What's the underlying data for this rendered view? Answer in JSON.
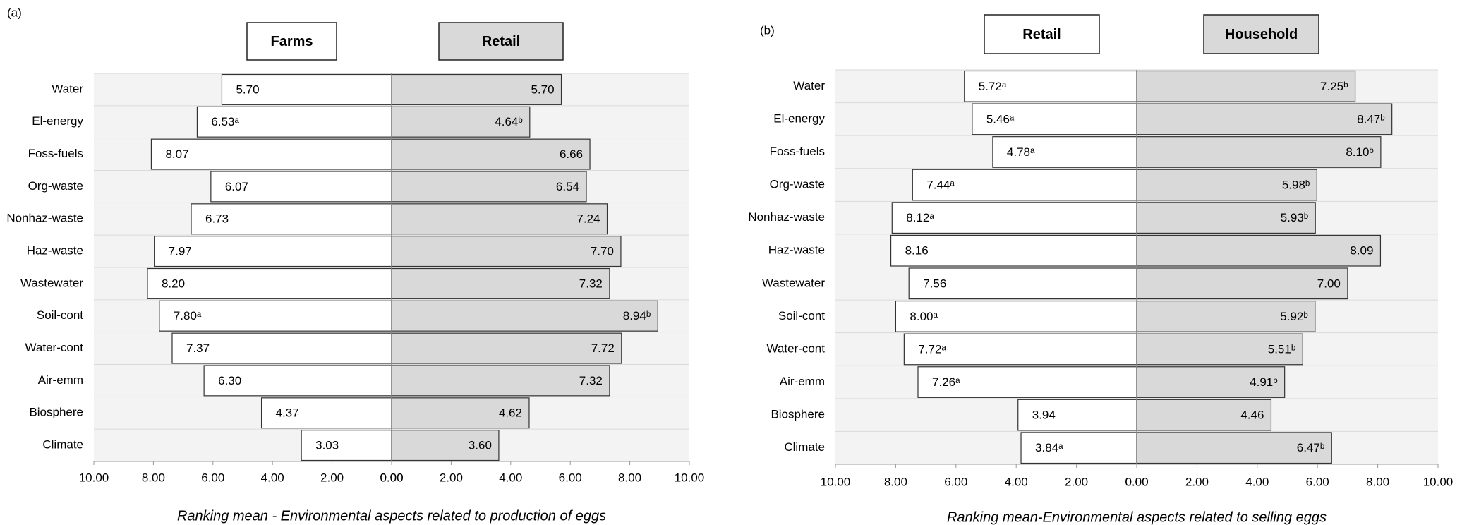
{
  "chart_data": [
    {
      "type": "butterfly",
      "panel": "(a)",
      "xlabel": "Ranking mean - Environmental aspects related to production of eggs",
      "categories": [
        "Water",
        "El-energy",
        "Foss-fuels",
        "Org-waste",
        "Nonhaz-waste",
        "Haz-waste",
        "Wastewater",
        "Soil-cont",
        "Water-cont",
        "Air-emm",
        "Biosphere",
        "Climate"
      ],
      "series": [
        {
          "name": "Farms",
          "color": "#ffffff",
          "values": [
            5.7,
            6.53,
            8.07,
            6.07,
            6.73,
            7.97,
            8.2,
            7.8,
            7.37,
            6.3,
            4.37,
            3.03
          ],
          "value_labels": [
            "5.70",
            "6.53ᵃ",
            "8.07",
            "6.07",
            "6.73",
            "7.97",
            "8.20",
            "7.80ᵃ",
            "7.37",
            "6.30",
            "4.37",
            "3.03"
          ]
        },
        {
          "name": "Retail",
          "color": "#d9d9d9",
          "values": [
            5.7,
            4.64,
            6.66,
            6.54,
            7.24,
            7.7,
            7.32,
            8.94,
            7.72,
            7.32,
            4.62,
            3.6
          ],
          "value_labels": [
            "5.70",
            "4.64ᵇ",
            "6.66",
            "6.54",
            "7.24",
            "7.70",
            "7.32",
            "8.94ᵇ",
            "7.72",
            "7.32",
            "4.62",
            "3.60"
          ]
        }
      ],
      "xlim": [
        0,
        10
      ],
      "xticks": [
        {
          "value": 0,
          "label": "0.00"
        },
        {
          "value": 2,
          "label": "2.00"
        },
        {
          "value": 4,
          "label": "4.00"
        },
        {
          "value": 6,
          "label": "6.00"
        },
        {
          "value": 8,
          "label": "8.00"
        },
        {
          "value": 10,
          "label": "10.00"
        }
      ]
    },
    {
      "type": "butterfly",
      "panel": "(b)",
      "xlabel": "Ranking mean-Environmental aspects related to selling eggs",
      "categories": [
        "Water",
        "El-energy",
        "Foss-fuels",
        "Org-waste",
        "Nonhaz-waste",
        "Haz-waste",
        "Wastewater",
        "Soil-cont",
        "Water-cont",
        "Air-emm",
        "Biosphere",
        "Climate"
      ],
      "series": [
        {
          "name": "Retail",
          "color": "#ffffff",
          "values": [
            5.72,
            5.46,
            4.78,
            7.44,
            8.12,
            8.16,
            7.56,
            8.0,
            7.72,
            7.26,
            3.94,
            3.84
          ],
          "value_labels": [
            "5.72ᵃ",
            "5.46ᵃ",
            "4.78ᵃ",
            "7.44ᵃ",
            "8.12ᵃ",
            "8.16",
            "7.56",
            "8.00ᵃ",
            "7.72ᵃ",
            "7.26ᵃ",
            "3.94",
            "3.84ᵃ"
          ]
        },
        {
          "name": "Household",
          "color": "#d9d9d9",
          "values": [
            7.25,
            8.47,
            8.1,
            5.98,
            5.93,
            8.09,
            7.0,
            5.92,
            5.51,
            4.91,
            4.46,
            6.47
          ],
          "value_labels": [
            "7.25ᵇ",
            "8.47ᵇ",
            "8.10ᵇ",
            "5.98ᵇ",
            "5.93ᵇ",
            "8.09",
            "7.00",
            "5.92ᵇ",
            "5.51ᵇ",
            "4.91ᵇ",
            "4.46",
            "6.47ᵇ"
          ]
        }
      ],
      "xlim": [
        0,
        10
      ],
      "xticks": [
        {
          "value": 0,
          "label": "0.00"
        },
        {
          "value": 2,
          "label": "2.00"
        },
        {
          "value": 4,
          "label": "4.00"
        },
        {
          "value": 6,
          "label": "6.00"
        },
        {
          "value": 8,
          "label": "8.00"
        },
        {
          "value": 10,
          "label": "10.00"
        }
      ]
    }
  ]
}
